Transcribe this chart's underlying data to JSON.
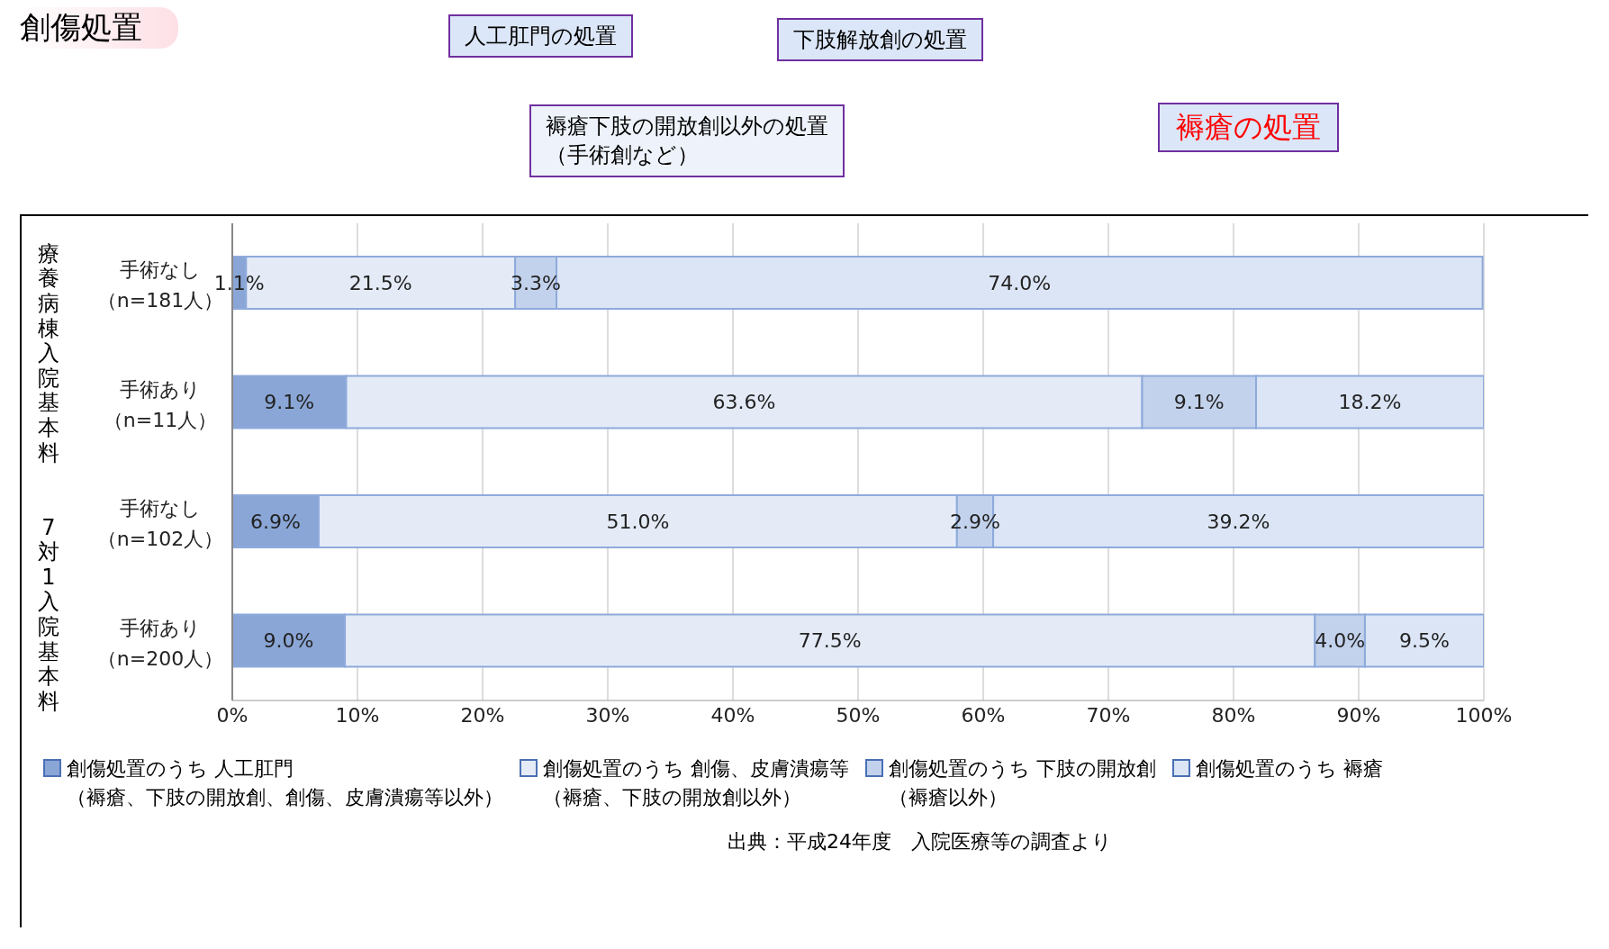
{
  "chart_data": {
    "type": "bar",
    "orientation": "horizontal",
    "stacked": true,
    "title": "創傷処置",
    "categories": [
      "手術なし（n=181人）",
      "手術あり（n=11人）",
      "手術なし（n=102人）",
      "手術あり（n=200人）"
    ],
    "series": [
      {
        "name": "創傷処置のうち 人工肛門（褥瘡、下肢の開放創、創傷、皮膚潰瘍等以外）",
        "color": "#8aa6d6",
        "values": [
          1.1,
          9.1,
          6.9,
          9.0
        ],
        "value_labels": [
          "1.1%",
          "9.1%",
          "6.9%",
          "9.0%"
        ]
      },
      {
        "name": "創傷処置のうち 創傷、皮膚潰瘍等（褥瘡、下肢の開放創以外）",
        "color": "#e4ebf7",
        "values": [
          21.5,
          63.6,
          51.0,
          77.5
        ],
        "value_labels": [
          "21.5%",
          "63.6%",
          "51.0%",
          "77.5%"
        ]
      },
      {
        "name": "創傷処置のうち 下肢の開放創（褥瘡以外）",
        "color": "#c3d2ec",
        "values": [
          3.3,
          9.1,
          2.9,
          4.0
        ],
        "value_labels": [
          "3.3%",
          "9.1%",
          "2.9%",
          "4.0%"
        ]
      },
      {
        "name": "創傷処置のうち 褥瘡",
        "color": "#dbe5f5",
        "values": [
          74.0,
          18.2,
          39.2,
          9.5
        ],
        "value_labels": [
          "74.0%",
          "18.2%",
          "39.2%",
          "9.5%"
        ]
      }
    ],
    "xlim": [
      0,
      100
    ],
    "xticks": [
      {
        "value": 0,
        "label": "0%"
      },
      {
        "value": 10,
        "label": "10%"
      },
      {
        "value": 20,
        "label": "20%"
      },
      {
        "value": 30,
        "label": "30%"
      },
      {
        "value": 40,
        "label": "40%"
      },
      {
        "value": 50,
        "label": "50%"
      },
      {
        "value": 60,
        "label": "60%"
      },
      {
        "value": 70,
        "label": "70%"
      },
      {
        "value": 80,
        "label": "80%"
      },
      {
        "value": 90,
        "label": "90%"
      },
      {
        "value": 100,
        "label": "100%"
      }
    ],
    "grid": "x",
    "legend": "bottom",
    "annotations": [
      "療養病棟入院基本料",
      "7対1入院基本料",
      "人工肛門の処置",
      "下肢解放創の処置",
      "褥瘡下肢の開放創以外の処置（手術創など）",
      "褥瘡の処置",
      "出典：平成24年度　入院医療等の調査より"
    ]
  }
}
